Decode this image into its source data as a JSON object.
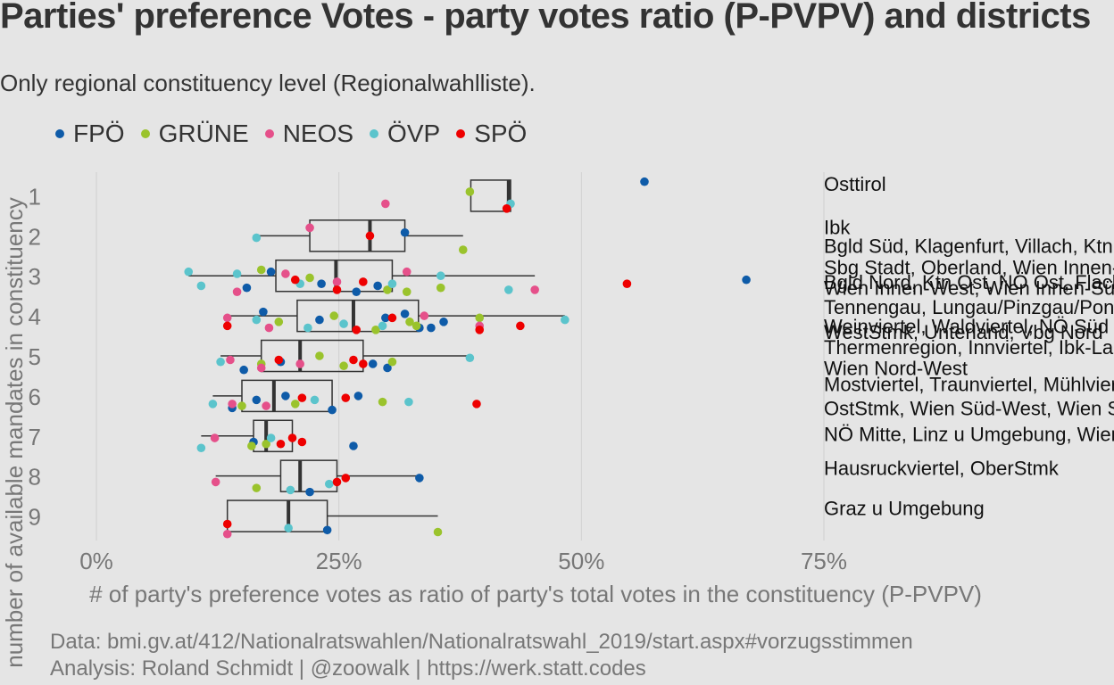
{
  "title": "Parties' preference Votes - party votes ratio (P-PVPV) and districts",
  "subtitle": "Only regional constituency level (Regionalwahlliste).",
  "caption_lines": [
    "Data: bmi.gv.at/412/Nationalratswahlen/Nationalratswahl_2019/start.aspx#vorzugsstimmen",
    "Analysis: Roland Schmidt | @zoowalk | https://werk.statt.codes"
  ],
  "legend": [
    {
      "name": "FPÖ",
      "color": "#0e5ba8"
    },
    {
      "name": "GRÜNE",
      "color": "#9ac32c"
    },
    {
      "name": "NEOS",
      "color": "#e5508a"
    },
    {
      "name": "ÖVP",
      "color": "#5bc4cc"
    },
    {
      "name": "SPÖ",
      "color": "#ee0000"
    }
  ],
  "chart_data": {
    "type": "boxplot-jitter",
    "orientation": "horizontal",
    "xlabel": "# of party's preference votes as ratio of party's total votes in the constituency (P-PVPV)",
    "ylabel": "number of available mandates in constituency",
    "x_ticks": [
      "0%",
      "25%",
      "50%",
      "75%"
    ],
    "x_tick_values": [
      0,
      0.25,
      0.5,
      0.75
    ],
    "xlim": [
      -0.08,
      0.86
    ],
    "y_categories": [
      "1",
      "2",
      "3",
      "4",
      "5",
      "6",
      "7",
      "8",
      "9"
    ],
    "grid": true,
    "legend_position": "top-left",
    "boxes": [
      {
        "mandates": 1,
        "min": 0.386,
        "q1": 0.386,
        "median": 0.425,
        "q3": 0.427,
        "max": 0.427
      },
      {
        "mandates": 2,
        "min": 0.165,
        "q1": 0.22,
        "median": 0.282,
        "q3": 0.318,
        "max": 0.378
      },
      {
        "mandates": 3,
        "min": 0.095,
        "q1": 0.185,
        "median": 0.247,
        "q3": 0.305,
        "max": 0.452
      },
      {
        "mandates": 4,
        "min": 0.132,
        "q1": 0.207,
        "median": 0.265,
        "q3": 0.332,
        "max": 0.483
      },
      {
        "mandates": 5,
        "min": 0.128,
        "q1": 0.17,
        "median": 0.21,
        "q3": 0.275,
        "max": 0.385
      },
      {
        "mandates": 6,
        "min": 0.12,
        "q1": 0.15,
        "median": 0.183,
        "q3": 0.243,
        "max": 0.243
      },
      {
        "mandates": 7,
        "min": 0.108,
        "q1": 0.162,
        "median": 0.175,
        "q3": 0.202,
        "max": 0.202
      },
      {
        "mandates": 8,
        "min": 0.123,
        "q1": 0.19,
        "median": 0.21,
        "q3": 0.248,
        "max": 0.333
      },
      {
        "mandates": 9,
        "min": 0.135,
        "q1": 0.135,
        "median": 0.198,
        "q3": 0.238,
        "max": 0.352
      }
    ],
    "points": [
      {
        "mandates": 1,
        "party": "FPÖ",
        "x": 0.565,
        "jy": -0.35
      },
      {
        "mandates": 1,
        "party": "GRÜNE",
        "x": 0.385,
        "jy": -0.1
      },
      {
        "mandates": 1,
        "party": "NEOS",
        "x": 0.298,
        "jy": 0.2
      },
      {
        "mandates": 1,
        "party": "ÖVP",
        "x": 0.427,
        "jy": 0.2
      },
      {
        "mandates": 1,
        "party": "SPÖ",
        "x": 0.423,
        "jy": 0.32
      },
      {
        "mandates": 2,
        "party": "FPÖ",
        "x": 0.318,
        "jy": -0.08
      },
      {
        "mandates": 2,
        "party": "GRÜNE",
        "x": 0.378,
        "jy": 0.35
      },
      {
        "mandates": 2,
        "party": "NEOS",
        "x": 0.22,
        "jy": -0.2
      },
      {
        "mandates": 2,
        "party": "ÖVP",
        "x": 0.165,
        "jy": 0.05
      },
      {
        "mandates": 2,
        "party": "SPÖ",
        "x": 0.282,
        "jy": 0.0
      },
      {
        "mandates": 3,
        "party": "FPÖ",
        "x": 0.67,
        "jy": 0.1
      },
      {
        "mandates": 3,
        "party": "FPÖ",
        "x": 0.18,
        "jy": -0.1
      },
      {
        "mandates": 3,
        "party": "FPÖ",
        "x": 0.155,
        "jy": 0.3
      },
      {
        "mandates": 3,
        "party": "FPÖ",
        "x": 0.232,
        "jy": 0.2
      },
      {
        "mandates": 3,
        "party": "FPÖ",
        "x": 0.268,
        "jy": 0.4
      },
      {
        "mandates": 3,
        "party": "FPÖ",
        "x": 0.29,
        "jy": 0.25
      },
      {
        "mandates": 3,
        "party": "GRÜNE",
        "x": 0.17,
        "jy": -0.15
      },
      {
        "mandates": 3,
        "party": "GRÜNE",
        "x": 0.22,
        "jy": 0.05
      },
      {
        "mandates": 3,
        "party": "GRÜNE",
        "x": 0.3,
        "jy": 0.35
      },
      {
        "mandates": 3,
        "party": "GRÜNE",
        "x": 0.32,
        "jy": 0.4
      },
      {
        "mandates": 3,
        "party": "GRÜNE",
        "x": 0.355,
        "jy": 0.3
      },
      {
        "mandates": 3,
        "party": "NEOS",
        "x": 0.145,
        "jy": 0.4
      },
      {
        "mandates": 3,
        "party": "NEOS",
        "x": 0.195,
        "jy": -0.05
      },
      {
        "mandates": 3,
        "party": "NEOS",
        "x": 0.248,
        "jy": 0.15
      },
      {
        "mandates": 3,
        "party": "NEOS",
        "x": 0.32,
        "jy": -0.1
      },
      {
        "mandates": 3,
        "party": "NEOS",
        "x": 0.452,
        "jy": 0.35
      },
      {
        "mandates": 3,
        "party": "ÖVP",
        "x": 0.095,
        "jy": -0.1
      },
      {
        "mandates": 3,
        "party": "ÖVP",
        "x": 0.108,
        "jy": 0.25
      },
      {
        "mandates": 3,
        "party": "ÖVP",
        "x": 0.145,
        "jy": -0.05
      },
      {
        "mandates": 3,
        "party": "ÖVP",
        "x": 0.21,
        "jy": 0.2
      },
      {
        "mandates": 3,
        "party": "ÖVP",
        "x": 0.305,
        "jy": 0.2
      },
      {
        "mandates": 3,
        "party": "ÖVP",
        "x": 0.355,
        "jy": 0.0
      },
      {
        "mandates": 3,
        "party": "ÖVP",
        "x": 0.425,
        "jy": 0.35
      },
      {
        "mandates": 3,
        "party": "SPÖ",
        "x": 0.547,
        "jy": 0.2
      },
      {
        "mandates": 3,
        "party": "SPÖ",
        "x": 0.205,
        "jy": 0.1
      },
      {
        "mandates": 3,
        "party": "SPÖ",
        "x": 0.248,
        "jy": 0.35
      },
      {
        "mandates": 3,
        "party": "SPÖ",
        "x": 0.275,
        "jy": 0.15
      },
      {
        "mandates": 4,
        "party": "FPÖ",
        "x": 0.172,
        "jy": -0.1
      },
      {
        "mandates": 4,
        "party": "FPÖ",
        "x": 0.23,
        "jy": 0.1
      },
      {
        "mandates": 4,
        "party": "FPÖ",
        "x": 0.298,
        "jy": 0.05
      },
      {
        "mandates": 4,
        "party": "FPÖ",
        "x": 0.318,
        "jy": -0.05
      },
      {
        "mandates": 4,
        "party": "FPÖ",
        "x": 0.333,
        "jy": 0.3
      },
      {
        "mandates": 4,
        "party": "FPÖ",
        "x": 0.345,
        "jy": 0.3
      },
      {
        "mandates": 4,
        "party": "FPÖ",
        "x": 0.358,
        "jy": 0.15
      },
      {
        "mandates": 4,
        "party": "GRÜNE",
        "x": 0.188,
        "jy": 0.15
      },
      {
        "mandates": 4,
        "party": "GRÜNE",
        "x": 0.245,
        "jy": 0.0
      },
      {
        "mandates": 4,
        "party": "GRÜNE",
        "x": 0.288,
        "jy": 0.35
      },
      {
        "mandates": 4,
        "party": "GRÜNE",
        "x": 0.323,
        "jy": 0.15
      },
      {
        "mandates": 4,
        "party": "GRÜNE",
        "x": 0.33,
        "jy": 0.25
      },
      {
        "mandates": 4,
        "party": "GRÜNE",
        "x": 0.395,
        "jy": 0.05
      },
      {
        "mandates": 4,
        "party": "NEOS",
        "x": 0.135,
        "jy": 0.05
      },
      {
        "mandates": 4,
        "party": "NEOS",
        "x": 0.178,
        "jy": 0.3
      },
      {
        "mandates": 4,
        "party": "NEOS",
        "x": 0.338,
        "jy": 0.0
      },
      {
        "mandates": 4,
        "party": "NEOS",
        "x": 0.395,
        "jy": 0.25
      },
      {
        "mandates": 4,
        "party": "ÖVP",
        "x": 0.165,
        "jy": 0.1
      },
      {
        "mandates": 4,
        "party": "ÖVP",
        "x": 0.218,
        "jy": 0.3
      },
      {
        "mandates": 4,
        "party": "ÖVP",
        "x": 0.255,
        "jy": 0.2
      },
      {
        "mandates": 4,
        "party": "ÖVP",
        "x": 0.295,
        "jy": 0.25
      },
      {
        "mandates": 4,
        "party": "ÖVP",
        "x": 0.483,
        "jy": 0.1
      },
      {
        "mandates": 4,
        "party": "SPÖ",
        "x": 0.135,
        "jy": 0.25
      },
      {
        "mandates": 4,
        "party": "SPÖ",
        "x": 0.268,
        "jy": 0.35
      },
      {
        "mandates": 4,
        "party": "SPÖ",
        "x": 0.305,
        "jy": 0.05
      },
      {
        "mandates": 4,
        "party": "SPÖ",
        "x": 0.395,
        "jy": 0.35
      },
      {
        "mandates": 4,
        "party": "SPÖ",
        "x": 0.437,
        "jy": 0.25
      },
      {
        "mandates": 5,
        "party": "FPÖ",
        "x": 0.152,
        "jy": 0.35
      },
      {
        "mandates": 5,
        "party": "FPÖ",
        "x": 0.19,
        "jy": 0.15
      },
      {
        "mandates": 5,
        "party": "FPÖ",
        "x": 0.285,
        "jy": 0.2
      },
      {
        "mandates": 5,
        "party": "FPÖ",
        "x": 0.3,
        "jy": 0.3
      },
      {
        "mandates": 5,
        "party": "GRÜNE",
        "x": 0.17,
        "jy": 0.2
      },
      {
        "mandates": 5,
        "party": "GRÜNE",
        "x": 0.23,
        "jy": 0.0
      },
      {
        "mandates": 5,
        "party": "GRÜNE",
        "x": 0.255,
        "jy": 0.25
      },
      {
        "mandates": 5,
        "party": "GRÜNE",
        "x": 0.305,
        "jy": 0.15
      },
      {
        "mandates": 5,
        "party": "NEOS",
        "x": 0.138,
        "jy": 0.1
      },
      {
        "mandates": 5,
        "party": "NEOS",
        "x": 0.17,
        "jy": 0.3
      },
      {
        "mandates": 5,
        "party": "NEOS",
        "x": 0.21,
        "jy": 0.2
      },
      {
        "mandates": 5,
        "party": "ÖVP",
        "x": 0.128,
        "jy": 0.15
      },
      {
        "mandates": 5,
        "party": "ÖVP",
        "x": 0.385,
        "jy": 0.05
      },
      {
        "mandates": 5,
        "party": "SPÖ",
        "x": 0.188,
        "jy": 0.1
      },
      {
        "mandates": 5,
        "party": "SPÖ",
        "x": 0.265,
        "jy": 0.1
      },
      {
        "mandates": 5,
        "party": "SPÖ",
        "x": 0.275,
        "jy": 0.2
      },
      {
        "mandates": 6,
        "party": "FPÖ",
        "x": 0.14,
        "jy": 0.3
      },
      {
        "mandates": 6,
        "party": "FPÖ",
        "x": 0.165,
        "jy": 0.1
      },
      {
        "mandates": 6,
        "party": "FPÖ",
        "x": 0.195,
        "jy": 0.0
      },
      {
        "mandates": 6,
        "party": "FPÖ",
        "x": 0.243,
        "jy": 0.35
      },
      {
        "mandates": 6,
        "party": "FPÖ",
        "x": 0.27,
        "jy": 0.0
      },
      {
        "mandates": 6,
        "party": "GRÜNE",
        "x": 0.15,
        "jy": 0.25
      },
      {
        "mandates": 6,
        "party": "GRÜNE",
        "x": 0.205,
        "jy": 0.2
      },
      {
        "mandates": 6,
        "party": "GRÜNE",
        "x": 0.295,
        "jy": 0.15
      },
      {
        "mandates": 6,
        "party": "NEOS",
        "x": 0.14,
        "jy": 0.2
      },
      {
        "mandates": 6,
        "party": "NEOS",
        "x": 0.175,
        "jy": 0.25
      },
      {
        "mandates": 6,
        "party": "ÖVP",
        "x": 0.12,
        "jy": 0.2
      },
      {
        "mandates": 6,
        "party": "ÖVP",
        "x": 0.225,
        "jy": 0.1
      },
      {
        "mandates": 6,
        "party": "ÖVP",
        "x": 0.322,
        "jy": 0.15
      },
      {
        "mandates": 6,
        "party": "SPÖ",
        "x": 0.212,
        "jy": 0.05
      },
      {
        "mandates": 6,
        "party": "SPÖ",
        "x": 0.257,
        "jy": 0.05
      },
      {
        "mandates": 6,
        "party": "SPÖ",
        "x": 0.392,
        "jy": 0.2
      },
      {
        "mandates": 7,
        "party": "FPÖ",
        "x": 0.162,
        "jy": 0.15
      },
      {
        "mandates": 7,
        "party": "FPÖ",
        "x": 0.265,
        "jy": 0.25
      },
      {
        "mandates": 7,
        "party": "GRÜNE",
        "x": 0.175,
        "jy": 0.2
      },
      {
        "mandates": 7,
        "party": "GRÜNE",
        "x": 0.16,
        "jy": 0.25
      },
      {
        "mandates": 7,
        "party": "NEOS",
        "x": 0.122,
        "jy": 0.05
      },
      {
        "mandates": 7,
        "party": "ÖVP",
        "x": 0.108,
        "jy": 0.3
      },
      {
        "mandates": 7,
        "party": "ÖVP",
        "x": 0.18,
        "jy": 0.05
      },
      {
        "mandates": 7,
        "party": "SPÖ",
        "x": 0.19,
        "jy": 0.2
      },
      {
        "mandates": 7,
        "party": "SPÖ",
        "x": 0.212,
        "jy": 0.15
      },
      {
        "mandates": 7,
        "party": "SPÖ",
        "x": 0.202,
        "jy": 0.05
      },
      {
        "mandates": 8,
        "party": "FPÖ",
        "x": 0.333,
        "jy": 0.05
      },
      {
        "mandates": 8,
        "party": "FPÖ",
        "x": 0.22,
        "jy": 0.4
      },
      {
        "mandates": 8,
        "party": "GRÜNE",
        "x": 0.165,
        "jy": 0.3
      },
      {
        "mandates": 8,
        "party": "NEOS",
        "x": 0.123,
        "jy": 0.15
      },
      {
        "mandates": 8,
        "party": "ÖVP",
        "x": 0.2,
        "jy": 0.35
      },
      {
        "mandates": 8,
        "party": "ÖVP",
        "x": 0.24,
        "jy": 0.2
      },
      {
        "mandates": 8,
        "party": "SPÖ",
        "x": 0.248,
        "jy": 0.15
      },
      {
        "mandates": 8,
        "party": "SPÖ",
        "x": 0.257,
        "jy": 0.05
      },
      {
        "mandates": 9,
        "party": "FPÖ",
        "x": 0.238,
        "jy": 0.35
      },
      {
        "mandates": 9,
        "party": "GRÜNE",
        "x": 0.352,
        "jy": 0.4
      },
      {
        "mandates": 9,
        "party": "NEOS",
        "x": 0.135,
        "jy": 0.45
      },
      {
        "mandates": 9,
        "party": "ÖVP",
        "x": 0.198,
        "jy": 0.3
      },
      {
        "mandates": 9,
        "party": "SPÖ",
        "x": 0.135,
        "jy": 0.2
      }
    ],
    "district_labels": [
      {
        "mandates": 1,
        "dy": -0.3,
        "text": "Osttirol"
      },
      {
        "mandates": 2,
        "dy": -0.22,
        "text": "Ibk"
      },
      {
        "mandates": 2,
        "dy": 0.25,
        "text": "Bgld Süd, Klagenfurt, Villach, Ktn West"
      },
      {
        "mandates": 3,
        "dy": -0.22,
        "text": "Sbg Stadt, Oberland, Wien Innen-Ost"
      },
      {
        "mandates": 3,
        "dy": 0.15,
        "text": "Bgld Nord, Ktn Ost, NÖ Ost, Flachgau"
      },
      {
        "mandates": 3,
        "dy": 0.3,
        "text": "Wien Innen-West, Wien Innen-Süd"
      },
      {
        "mandates": 4,
        "dy": -0.22,
        "text": "Tennengau, Lungau/Pinzgau/Pongau"
      },
      {
        "mandates": 4,
        "dy": 0.25,
        "text": "Weinviertel, Waldviertel, NÖ Süd"
      },
      {
        "mandates": 4,
        "dy": 0.4,
        "text": "WestStmk, Unterland, Vbg Nord"
      },
      {
        "mandates": 5,
        "dy": -0.22,
        "text": "Thermenregion, Innviertel, Ibk-Land"
      },
      {
        "mandates": 5,
        "dy": 0.3,
        "text": "Wien Nord-West"
      },
      {
        "mandates": 6,
        "dy": -0.3,
        "text": "Mostviertel, Traunviertel, Mühlviertel"
      },
      {
        "mandates": 6,
        "dy": 0.3,
        "text": "OstStmk, Wien Süd-West, Wien Süd"
      },
      {
        "mandates": 7,
        "dy": -0.05,
        "text": "NÖ Mitte, Linz u Umgebung, Wien Nord"
      },
      {
        "mandates": 8,
        "dy": -0.2,
        "text": "Hausruckviertel, OberStmk"
      },
      {
        "mandates": 9,
        "dy": -0.2,
        "text": "Graz u Umgebung"
      }
    ]
  }
}
